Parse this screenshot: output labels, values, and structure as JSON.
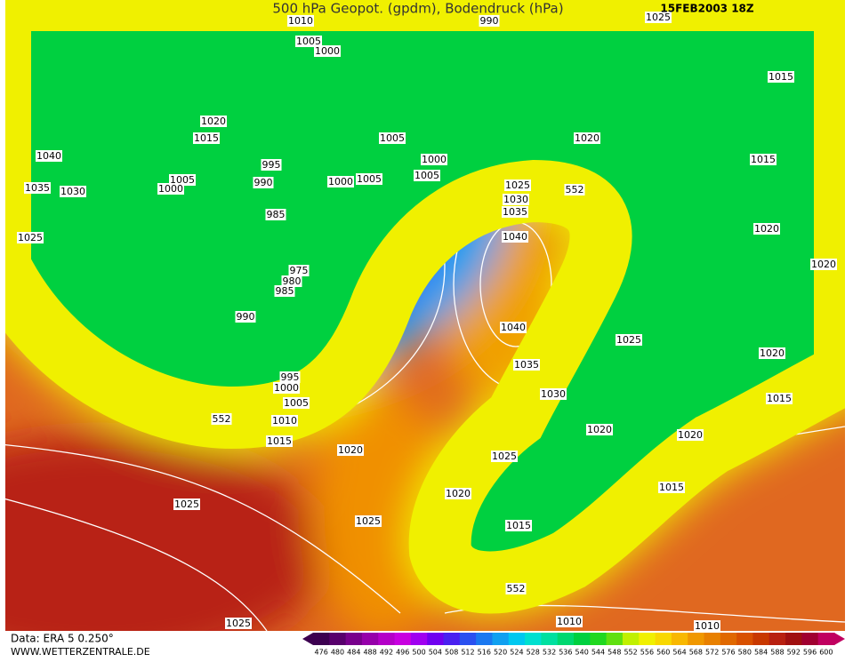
{
  "header": {
    "title": "500 hPa Geopot. (gpdm), Bodendruck (hPa)",
    "date": "15FEB2003 18Z"
  },
  "isobar_labels": [
    "1010",
    "1005",
    "1000",
    "990",
    "1025",
    "1015",
    "1020",
    "1015",
    "1005",
    "1020",
    "1040",
    "1000",
    "1015",
    "995",
    "1005",
    "1000",
    "990",
    "1000",
    "1005",
    "1005",
    "1025",
    "552",
    "1035",
    "1030",
    "1030",
    "1035",
    "985",
    "1025",
    "1040",
    "1020",
    "1020",
    "975",
    "980",
    "985",
    "990",
    "1040",
    "1025",
    "1020",
    "1035",
    "995",
    "1000",
    "1005",
    "1030",
    "1015",
    "552",
    "1010",
    "1020",
    "1020",
    "1015",
    "1020",
    "1025",
    "1020",
    "1015",
    "1025",
    "1025",
    "1015",
    "552",
    "1010",
    "1025",
    "1010"
  ],
  "footer": {
    "source": "Data: ERA 5 0.250°",
    "site": "WWW.WETTERZENTRALE.DE"
  },
  "colorbar": {
    "ticks": [
      476,
      480,
      484,
      488,
      492,
      496,
      500,
      504,
      508,
      512,
      516,
      520,
      524,
      528,
      532,
      536,
      540,
      544,
      548,
      552,
      556,
      560,
      564,
      568,
      572,
      576,
      580,
      584,
      588,
      592,
      596,
      600
    ],
    "colors": [
      "#3c0050",
      "#58006c",
      "#78008c",
      "#9600aa",
      "#b400c8",
      "#c800e0",
      "#a000f0",
      "#7000f0",
      "#4a20f0",
      "#2a50f0",
      "#1a78f0",
      "#10a0f0",
      "#00c8f0",
      "#00e0d0",
      "#00e0a0",
      "#00d870",
      "#00d040",
      "#20d820",
      "#60e010",
      "#c0f000",
      "#f0f000",
      "#f8d800",
      "#f8b800",
      "#f09800",
      "#e88000",
      "#e06800",
      "#d85000",
      "#c83800",
      "#b82010",
      "#a01010",
      "#a00030",
      "#c00060"
    ]
  }
}
